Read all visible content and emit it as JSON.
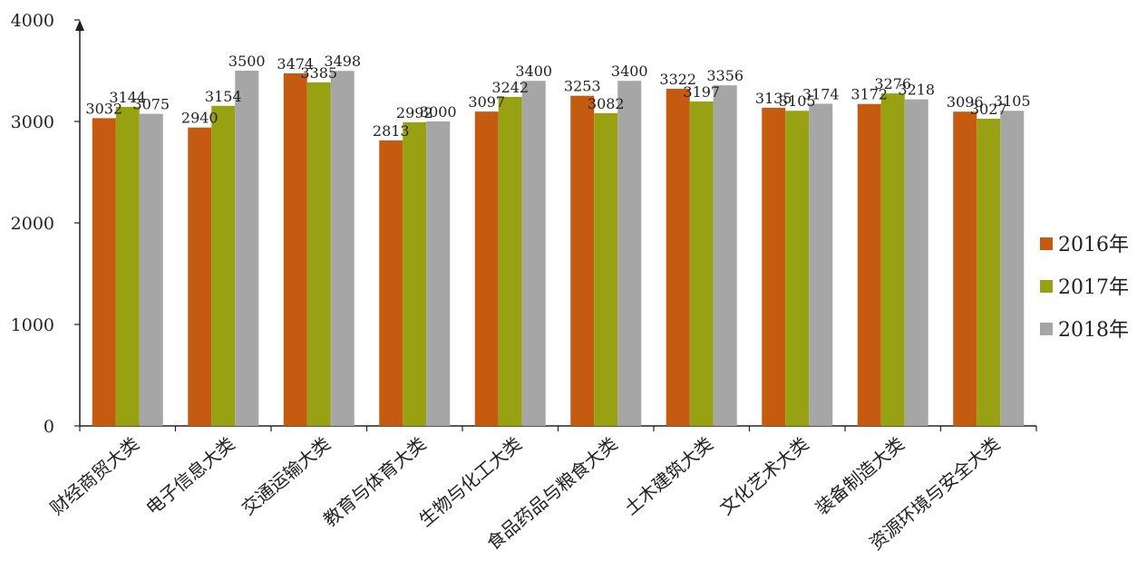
{
  "chart_data": {
    "type": "bar",
    "categories": [
      "财经商贸大类",
      "电子信息大类",
      "交通运输大类",
      "教育与体育大类",
      "生物与化工大类",
      "食品药品与粮食大类",
      "土木建筑大类",
      "文化艺术大类",
      "装备制造大类",
      "资源环境与安全大类"
    ],
    "series": [
      {
        "name": "2016年",
        "color": "#c55a11",
        "values": [
          3032,
          2940,
          3474,
          2813,
          3097,
          3253,
          3322,
          3135,
          3172,
          3096
        ]
      },
      {
        "name": "2017年",
        "color": "#98a111",
        "values": [
          3144,
          3154,
          3385,
          2992,
          3242,
          3082,
          3197,
          3105,
          3276,
          3027
        ]
      },
      {
        "name": "2018年",
        "color": "#a6a6a6",
        "values": [
          3075,
          3500,
          3498,
          3000,
          3400,
          3400,
          3356,
          3174,
          3218,
          3105
        ]
      }
    ],
    "ylim": [
      0,
      4000
    ],
    "yticks": [
      0,
      1000,
      2000,
      3000,
      4000
    ],
    "ytick_labels": [
      "0",
      "1000",
      "2000",
      "3000",
      "4000"
    ],
    "grid": false,
    "legend_position": "right",
    "title": "",
    "xlabel": "",
    "ylabel": ""
  }
}
